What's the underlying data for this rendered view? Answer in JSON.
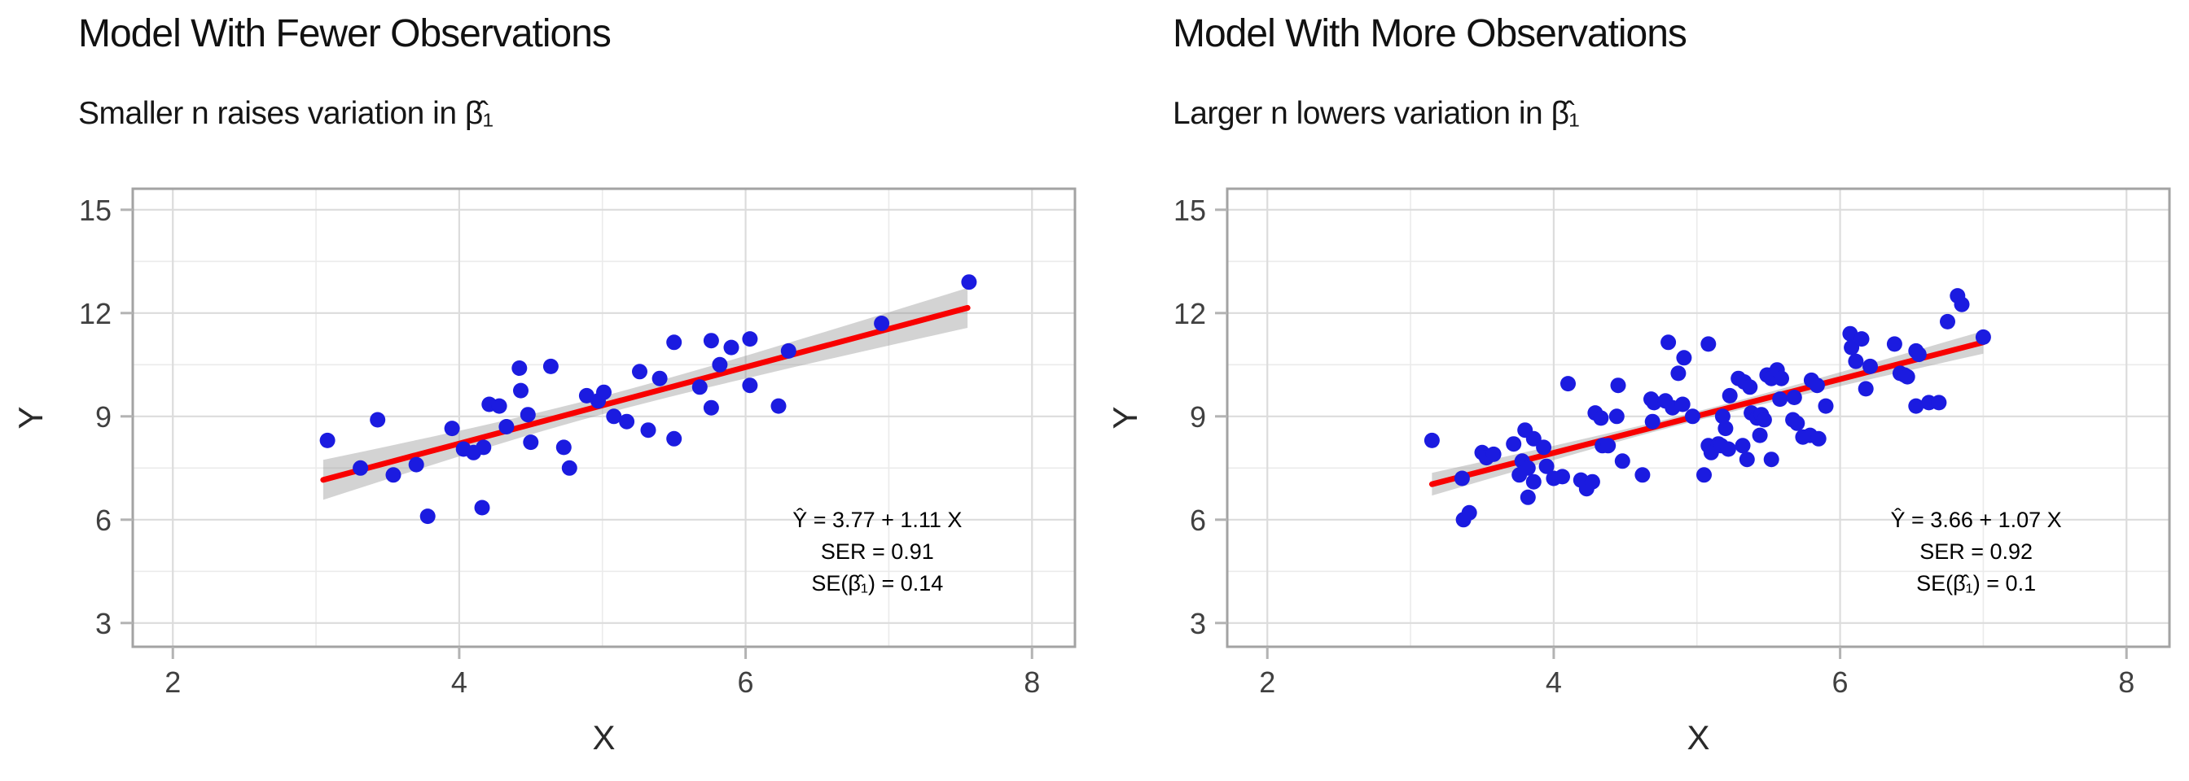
{
  "figure": {
    "background": "#ffffff"
  },
  "colors": {
    "point_blue": "#1b1be0",
    "regression_red": "#f80000",
    "confidence_band_gray": "#8c8c8c",
    "band_opacity": 0.38,
    "grid_major": "#dcdcdc",
    "grid_minor": "#ebebeb",
    "panel_border": "#a3a3a3",
    "tick_mark": "#b3b3b3",
    "tick_label": "#404040",
    "axis_title": "#2a2a2a",
    "annotation_text": "#000000",
    "title_text": "#111111"
  },
  "chart_data": [
    {
      "type": "scatter",
      "title": "Model With Fewer Observations",
      "subtitle": "Smaller n raises variation in β̂₁",
      "xlabel": "X",
      "ylabel": "Y",
      "xlim": [
        1.72,
        8.3
      ],
      "ylim": [
        2.31,
        15.61
      ],
      "x_ticks": [
        2,
        4,
        6,
        8
      ],
      "x_minor_ticks": [
        3,
        5,
        7
      ],
      "y_ticks": [
        3,
        6,
        9,
        12,
        15
      ],
      "y_minor_ticks": [
        4.5,
        7.5,
        10.5,
        13.5
      ],
      "grid": true,
      "legend": "none",
      "points": [
        [
          3.08,
          8.3
        ],
        [
          3.31,
          7.5
        ],
        [
          3.43,
          8.9
        ],
        [
          3.54,
          7.3
        ],
        [
          3.7,
          7.6
        ],
        [
          3.78,
          6.1
        ],
        [
          3.95,
          8.65
        ],
        [
          4.03,
          8.05
        ],
        [
          4.1,
          7.95
        ],
        [
          4.17,
          8.1
        ],
        [
          4.16,
          6.35
        ],
        [
          4.21,
          9.35
        ],
        [
          4.28,
          9.3
        ],
        [
          4.33,
          8.7
        ],
        [
          4.42,
          10.4
        ],
        [
          4.43,
          9.75
        ],
        [
          4.48,
          9.05
        ],
        [
          4.5,
          8.25
        ],
        [
          4.64,
          10.45
        ],
        [
          4.73,
          8.1
        ],
        [
          4.77,
          7.5
        ],
        [
          4.89,
          9.6
        ],
        [
          4.97,
          9.45
        ],
        [
          5.01,
          9.7
        ],
        [
          5.08,
          9.0
        ],
        [
          5.17,
          8.85
        ],
        [
          5.26,
          10.3
        ],
        [
          5.32,
          8.6
        ],
        [
          5.4,
          10.1
        ],
        [
          5.5,
          11.15
        ],
        [
          5.5,
          8.35
        ],
        [
          5.68,
          9.85
        ],
        [
          5.76,
          11.2
        ],
        [
          5.76,
          9.25
        ],
        [
          5.82,
          10.5
        ],
        [
          5.9,
          11.0
        ],
        [
          6.03,
          11.25
        ],
        [
          6.03,
          9.9
        ],
        [
          6.23,
          9.3
        ],
        [
          6.3,
          10.9
        ],
        [
          6.95,
          11.7
        ],
        [
          7.56,
          12.9
        ]
      ],
      "regression": {
        "equation": "Ŷ = 3.77 + 1.11 X",
        "intercept": 3.77,
        "slope": 1.11,
        "x_start": 3.05,
        "x_end": 7.55,
        "xbar": 5.0,
        "band_half_mid": 0.26,
        "band_half_end": 0.58
      },
      "annotation": {
        "lines": [
          "Ŷ = 3.77 + 1.11 X",
          "SER = 0.91",
          "SE(β̂₁) = 0.14"
        ],
        "x": 6.92,
        "y_top": 5.78,
        "line_gap": 0.92
      }
    },
    {
      "type": "scatter",
      "title": "Model With More Observations",
      "subtitle": "Larger n lowers variation in β̂₁",
      "xlabel": "X",
      "ylabel": "Y",
      "xlim": [
        1.72,
        8.3
      ],
      "ylim": [
        2.31,
        15.61
      ],
      "x_ticks": [
        2,
        4,
        6,
        8
      ],
      "x_minor_ticks": [
        3,
        5,
        7
      ],
      "y_ticks": [
        3,
        6,
        9,
        12,
        15
      ],
      "y_minor_ticks": [
        4.5,
        7.5,
        10.5,
        13.5
      ],
      "grid": true,
      "legend": "none",
      "points": [
        [
          3.15,
          8.3
        ],
        [
          3.36,
          7.2
        ],
        [
          3.37,
          6.0
        ],
        [
          3.41,
          6.2
        ],
        [
          3.5,
          7.95
        ],
        [
          3.53,
          7.8
        ],
        [
          3.58,
          7.9
        ],
        [
          3.72,
          8.2
        ],
        [
          3.76,
          7.3
        ],
        [
          3.78,
          7.7
        ],
        [
          3.8,
          8.6
        ],
        [
          3.82,
          7.5
        ],
        [
          3.82,
          6.65
        ],
        [
          3.86,
          8.35
        ],
        [
          3.86,
          7.1
        ],
        [
          3.93,
          8.1
        ],
        [
          3.95,
          7.55
        ],
        [
          4.0,
          7.2
        ],
        [
          4.06,
          7.25
        ],
        [
          4.1,
          9.95
        ],
        [
          4.19,
          7.15
        ],
        [
          4.23,
          6.9
        ],
        [
          4.27,
          7.1
        ],
        [
          4.29,
          9.1
        ],
        [
          4.33,
          8.95
        ],
        [
          4.34,
          8.15
        ],
        [
          4.38,
          8.15
        ],
        [
          4.44,
          9.0
        ],
        [
          4.45,
          9.9
        ],
        [
          4.48,
          7.7
        ],
        [
          4.62,
          7.3
        ],
        [
          4.68,
          9.5
        ],
        [
          4.7,
          9.4
        ],
        [
          4.69,
          8.85
        ],
        [
          4.78,
          9.45
        ],
        [
          4.8,
          11.15
        ],
        [
          4.83,
          9.25
        ],
        [
          4.87,
          10.25
        ],
        [
          4.9,
          9.35
        ],
        [
          4.91,
          10.7
        ],
        [
          4.97,
          9.0
        ],
        [
          5.05,
          7.3
        ],
        [
          5.08,
          11.1
        ],
        [
          5.08,
          8.15
        ],
        [
          5.1,
          7.95
        ],
        [
          5.15,
          8.2
        ],
        [
          5.17,
          8.15
        ],
        [
          5.22,
          8.05
        ],
        [
          5.32,
          8.15
        ],
        [
          5.35,
          7.75
        ],
        [
          5.44,
          8.45
        ],
        [
          5.52,
          7.75
        ],
        [
          5.79,
          8.45
        ],
        [
          5.18,
          9.0
        ],
        [
          5.2,
          8.65
        ],
        [
          5.23,
          9.6
        ],
        [
          5.29,
          10.1
        ],
        [
          5.33,
          10.0
        ],
        [
          5.37,
          9.85
        ],
        [
          5.38,
          9.1
        ],
        [
          5.42,
          8.95
        ],
        [
          5.45,
          9.05
        ],
        [
          5.47,
          8.9
        ],
        [
          5.49,
          10.2
        ],
        [
          5.52,
          10.1
        ],
        [
          5.56,
          10.35
        ],
        [
          5.59,
          10.1
        ],
        [
          5.58,
          9.5
        ],
        [
          5.68,
          9.55
        ],
        [
          5.67,
          8.9
        ],
        [
          5.7,
          8.8
        ],
        [
          5.74,
          8.4
        ],
        [
          5.85,
          8.35
        ],
        [
          5.8,
          10.05
        ],
        [
          5.84,
          9.9
        ],
        [
          5.9,
          9.3
        ],
        [
          6.07,
          11.4
        ],
        [
          6.08,
          11.0
        ],
        [
          6.11,
          10.6
        ],
        [
          6.15,
          11.25
        ],
        [
          6.18,
          9.8
        ],
        [
          6.21,
          10.45
        ],
        [
          6.38,
          11.1
        ],
        [
          6.42,
          10.25
        ],
        [
          6.45,
          10.2
        ],
        [
          6.47,
          10.15
        ],
        [
          6.53,
          10.9
        ],
        [
          6.55,
          10.8
        ],
        [
          6.53,
          9.3
        ],
        [
          6.62,
          9.4
        ],
        [
          6.69,
          9.4
        ],
        [
          6.75,
          11.75
        ],
        [
          6.82,
          12.5
        ],
        [
          6.85,
          12.25
        ],
        [
          7.0,
          11.3
        ]
      ],
      "regression": {
        "equation": "Ŷ = 3.66 + 1.07 X",
        "intercept": 3.66,
        "slope": 1.07,
        "x_start": 3.15,
        "x_end": 7.0,
        "xbar": 4.97,
        "band_half_mid": 0.13,
        "band_half_end": 0.33
      },
      "annotation": {
        "lines": [
          "Ŷ = 3.66 + 1.07 X",
          "SER = 0.92",
          "SE(β̂₁) = 0.1"
        ],
        "x": 6.95,
        "y_top": 5.78,
        "line_gap": 0.92
      }
    }
  ]
}
